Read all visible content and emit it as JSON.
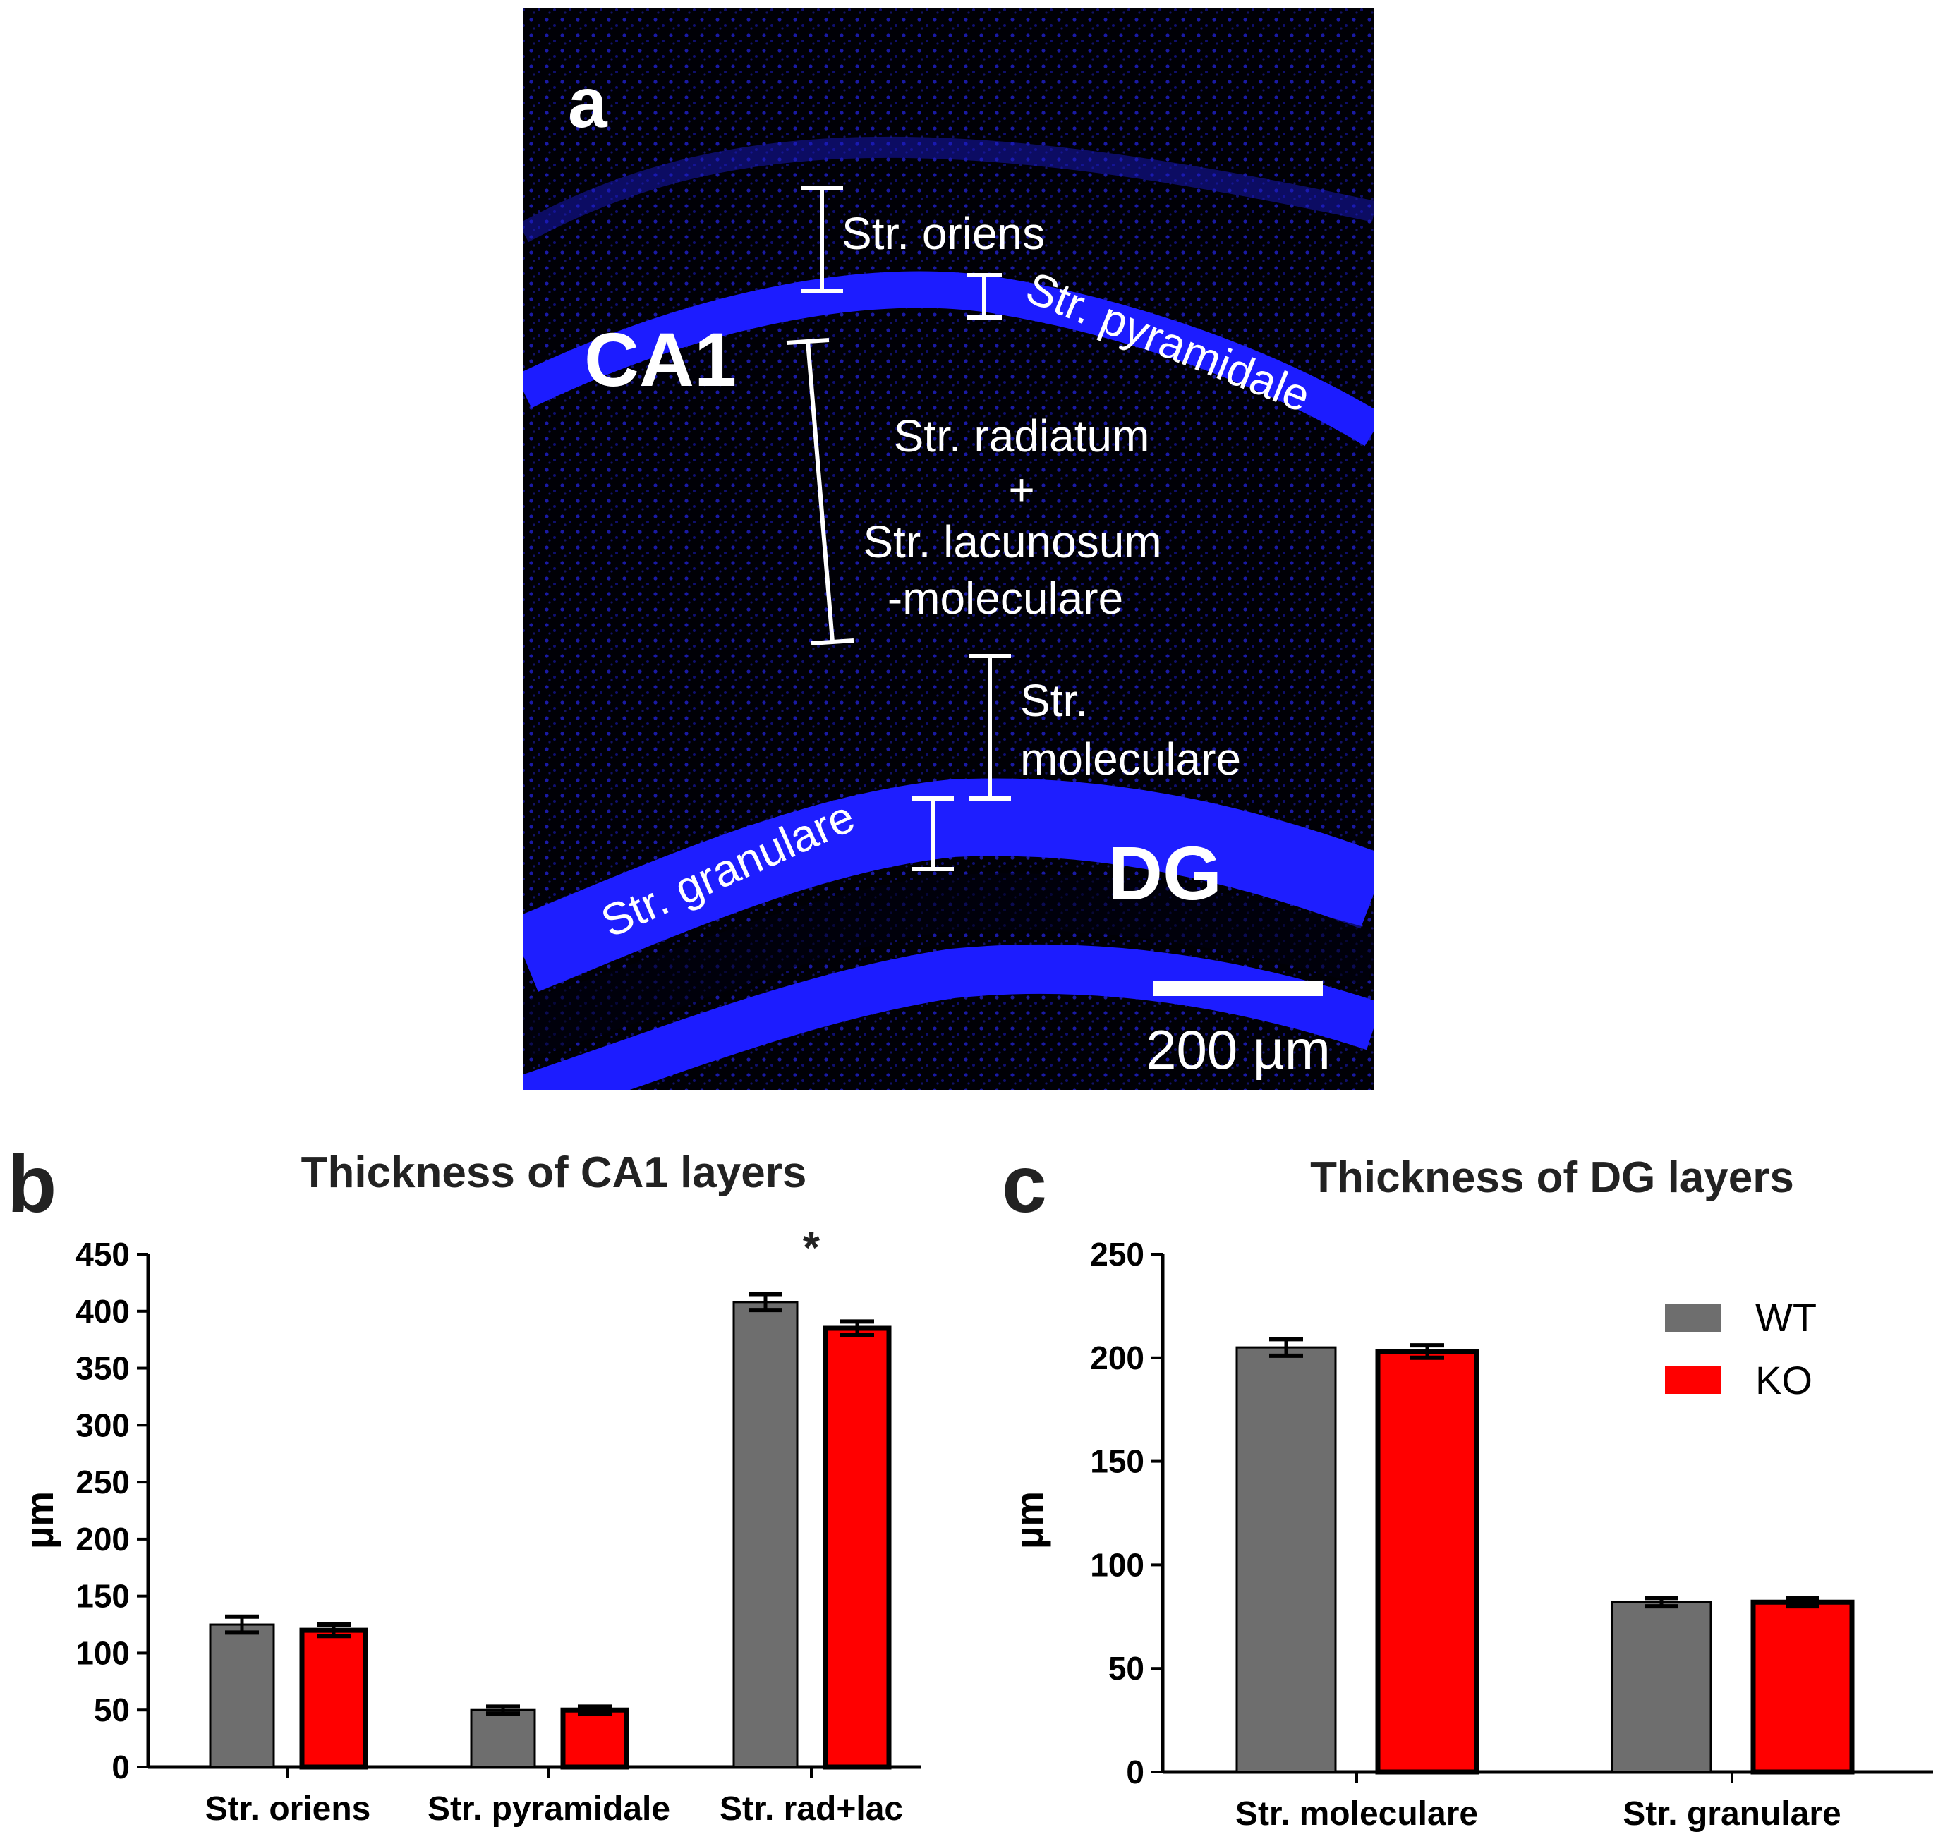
{
  "panel_a": {
    "label": "a",
    "region_ca1": "CA1",
    "region_dg": "DG",
    "layer_oriens": "Str. oriens",
    "layer_pyramidale": "Str. pyramidale",
    "layer_radiatum_line1": "Str. radiatum",
    "layer_radiatum_line2": "+",
    "layer_radiatum_line3": "Str. lacunosum",
    "layer_radiatum_line4": "-moleculare",
    "layer_moleculare_line1": "Str.",
    "layer_moleculare_line2": "moleculare",
    "layer_granulare": "Str. granulare",
    "scale_bar_label": "200 µm",
    "stain_color": "#1a1aff"
  },
  "chart_data": [
    {
      "panel": "b",
      "type": "bar",
      "title": "Thickness of CA1 layers",
      "xlabel": "",
      "ylabel": "µm",
      "ylim": [
        0,
        450
      ],
      "yticks": [
        0,
        50,
        100,
        150,
        200,
        250,
        300,
        350,
        400,
        450
      ],
      "categories": [
        "Str. oriens",
        "Str. pyramidale",
        "Str. rad+lac"
      ],
      "series": [
        {
          "name": "WT",
          "color": "#6e6e6e",
          "values": [
            125,
            50,
            408
          ],
          "errors": [
            7,
            3,
            7
          ]
        },
        {
          "name": "KO",
          "color": "#ff0000",
          "values": [
            120,
            50,
            385
          ],
          "errors": [
            5,
            3,
            6
          ]
        }
      ],
      "annotations": [
        {
          "text": "*",
          "category": "Str. rad+lac"
        }
      ]
    },
    {
      "panel": "c",
      "type": "bar",
      "title": "Thickness of DG layers",
      "xlabel": "",
      "ylabel": "µm",
      "ylim": [
        0,
        250
      ],
      "yticks": [
        0,
        50,
        100,
        150,
        200,
        250
      ],
      "categories": [
        "Str. moleculare",
        "Str. granulare"
      ],
      "series": [
        {
          "name": "WT",
          "color": "#6e6e6e",
          "values": [
            205,
            82
          ],
          "errors": [
            4,
            2
          ]
        },
        {
          "name": "KO",
          "color": "#ff0000",
          "values": [
            203,
            82
          ],
          "errors": [
            3,
            2
          ]
        }
      ],
      "legend": {
        "position": "top-right",
        "entries": [
          "WT",
          "KO"
        ]
      }
    }
  ]
}
